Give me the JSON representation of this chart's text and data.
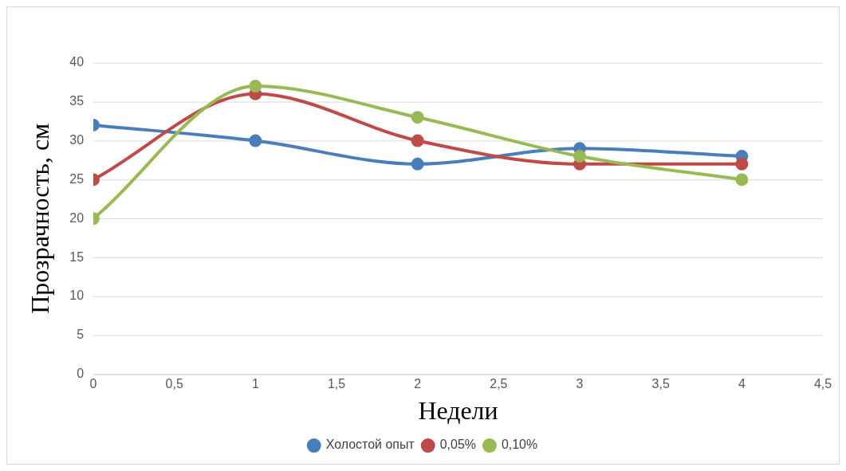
{
  "chart_data": {
    "type": "line",
    "xlabel": "Недели",
    "ylabel": "Прозрачность, см",
    "x": [
      0,
      1,
      2,
      3,
      4
    ],
    "xlim": [
      0,
      4.5
    ],
    "xticks": [
      0,
      {
        "value": 0.5,
        "label": "0,5"
      },
      1,
      {
        "value": 1.5,
        "label": "1,5"
      },
      2,
      {
        "value": 2.5,
        "label": "2,5"
      },
      3,
      {
        "value": 3.5,
        "label": "3,5"
      },
      4,
      {
        "value": 4.5,
        "label": "4,5"
      }
    ],
    "ylim": [
      0,
      40
    ],
    "yticks": [
      0,
      5,
      10,
      15,
      20,
      25,
      30,
      35,
      40
    ],
    "grid": "y",
    "legend": "bottom",
    "marker": "circle",
    "line_style": "solid",
    "series": [
      {
        "name": "Холостой опыт",
        "color": "#4a7ebb",
        "values": [
          32,
          30,
          27,
          29,
          28
        ]
      },
      {
        "name": "0,05%",
        "color": "#be4b48",
        "values": [
          25,
          36,
          30,
          27,
          27
        ]
      },
      {
        "name": "0,10%",
        "color": "#98b954",
        "values": [
          20,
          37,
          33,
          28,
          25
        ]
      }
    ]
  }
}
